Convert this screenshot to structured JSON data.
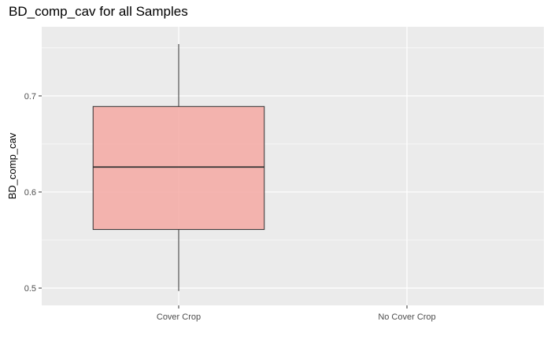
{
  "chart_data": {
    "type": "boxplot",
    "title": "BD_comp_cav for all Samples",
    "xlabel": "",
    "ylabel": "BD_comp_cav",
    "categories": [
      "Cover Crop",
      "No Cover Crop"
    ],
    "yticks": [
      "0.5",
      "0.6",
      "0.7"
    ],
    "yticks_values": [
      0.5,
      0.6,
      0.7
    ],
    "ylim": [
      0.482,
      0.772
    ],
    "grid": true,
    "legend": "none",
    "boxes": [
      {
        "category": "Cover Crop",
        "whisker_low": 0.497,
        "q1": 0.561,
        "median": 0.626,
        "q3": 0.689,
        "whisker_high": 0.754
      }
    ],
    "colors": {
      "box_fill": "#f4a9a3",
      "panel_bg": "#ebebeb",
      "grid": "#ffffff"
    }
  }
}
